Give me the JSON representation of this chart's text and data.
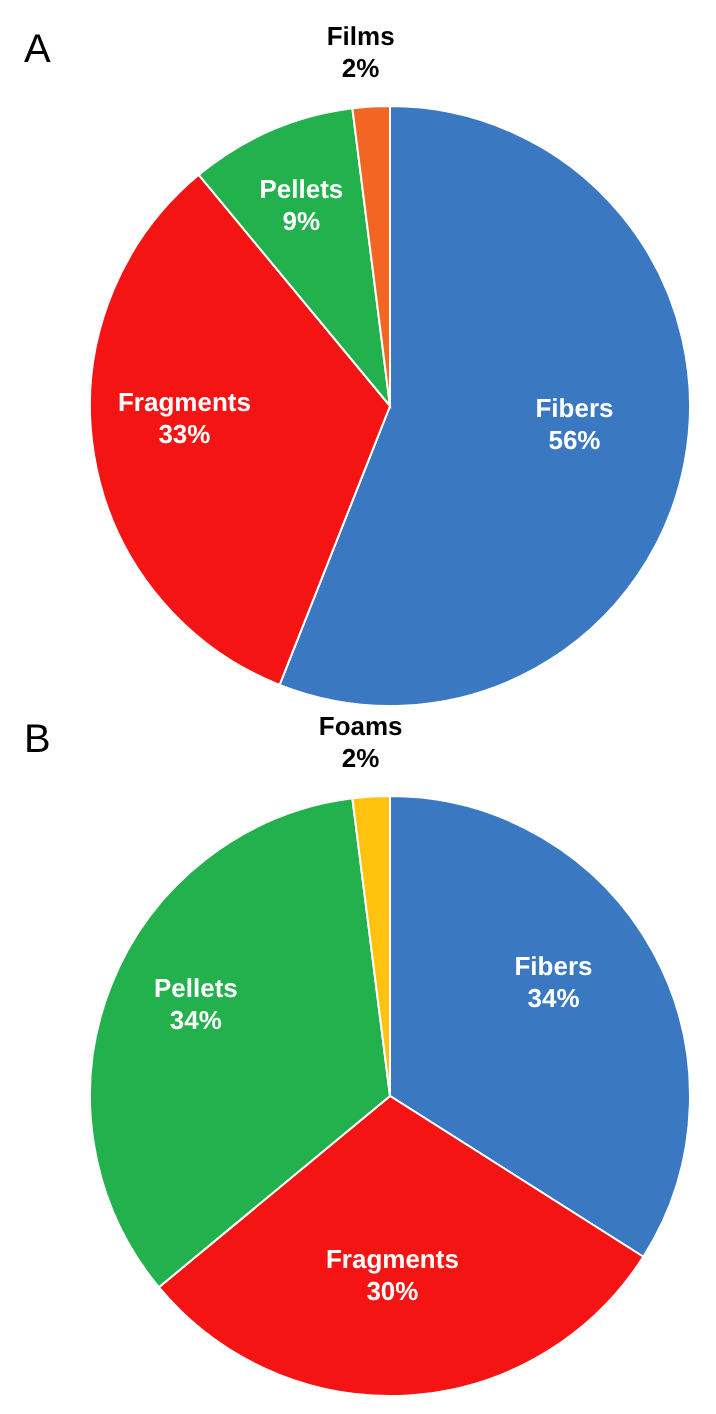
{
  "chart_data": [
    {
      "type": "pie",
      "title": "A",
      "categories": [
        "Fibers",
        "Fragments",
        "Pellets",
        "Films"
      ],
      "values": [
        56,
        33,
        9,
        2
      ],
      "value_labels": [
        "56%",
        "33%",
        "9%",
        "2%"
      ],
      "colors": [
        "#3a78c2",
        "#f51414",
        "#22b14c",
        "#f26522"
      ]
    },
    {
      "type": "pie",
      "title": "B",
      "categories": [
        "Fibers",
        "Fragments",
        "Pellets",
        "Foams"
      ],
      "values": [
        34,
        30,
        34,
        2
      ],
      "value_labels": [
        "34%",
        "30%",
        "34%",
        "2%"
      ],
      "colors": [
        "#3a78c2",
        "#f51414",
        "#22b14c",
        "#ffc20e"
      ]
    }
  ]
}
